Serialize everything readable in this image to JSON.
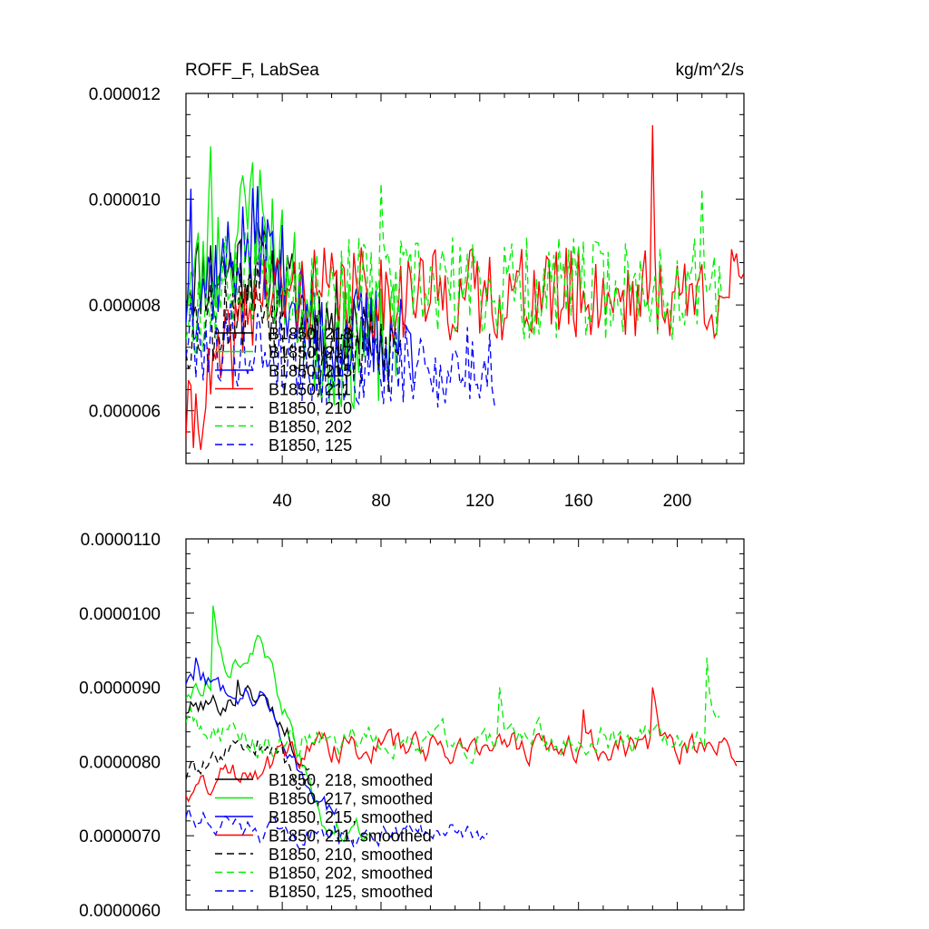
{
  "chart_data": [
    {
      "type": "line",
      "title_left": "ROFF_F, LabSea",
      "title_right": "kg/m^2/s",
      "xlabel": "",
      "ylabel": "",
      "xlim": [
        1,
        227
      ],
      "ylim": [
        5e-06,
        1.2e-05
      ],
      "x_ticks": [
        40,
        80,
        120,
        160,
        200
      ],
      "x_tick_labels": [
        "40",
        "80",
        "120",
        "160",
        "200"
      ],
      "y_ticks": [
        6e-06,
        8e-06,
        1e-05,
        1.2e-05
      ],
      "y_tick_labels": [
        "0.000006",
        "0.000008",
        "0.000010",
        "0.000012"
      ],
      "legend_position": "lower-left",
      "series": [
        {
          "name": "B1850, 218",
          "color": "#000000",
          "dash": "solid",
          "n": 76,
          "base": 7.7e-06,
          "start": 8.5e-06,
          "mid": 8.8e-06,
          "amp": 9e-07,
          "seed": 11,
          "spikes": []
        },
        {
          "name": "B1850, 217",
          "color": "#00ee00",
          "dash": "solid",
          "n": 87,
          "base": 7.2e-06,
          "start": 8.3e-06,
          "mid": 9.8e-06,
          "amp": 1.2e-06,
          "seed": 23,
          "spikes": [
            [
              11,
              1.1e-05
            ],
            [
              28,
              1.07e-05
            ]
          ]
        },
        {
          "name": "B1850, 215",
          "color": "#0000ff",
          "dash": "solid",
          "n": 94,
          "base": 7.4e-06,
          "start": 8.1e-06,
          "mid": 9.3e-06,
          "amp": 1e-06,
          "seed": 37,
          "spikes": [
            [
              3,
              1.02e-05
            ]
          ]
        },
        {
          "name": "B1850, 211",
          "color": "#ff0000",
          "dash": "solid",
          "n": 227,
          "base": 8.2e-06,
          "start": 5.5e-06,
          "mid": 8.2e-06,
          "amp": 9e-07,
          "seed": 41,
          "spikes": [
            [
              1,
              5.5e-06
            ],
            [
              190,
              1.14e-05
            ]
          ]
        },
        {
          "name": "B1850, 210",
          "color": "#000000",
          "dash": "8,5",
          "n": 88,
          "base": 7.1e-06,
          "start": 7.5e-06,
          "mid": 8.2e-06,
          "amp": 9e-07,
          "seed": 53,
          "spikes": []
        },
        {
          "name": "B1850, 202",
          "color": "#00ee00",
          "dash": "8,5",
          "n": 218,
          "base": 8.3e-06,
          "start": 7.8e-06,
          "mid": 8.8e-06,
          "amp": 1e-06,
          "seed": 67,
          "spikes": [
            [
              80,
              1.03e-05
            ],
            [
              210,
              1.02e-05
            ]
          ]
        },
        {
          "name": "B1850, 125",
          "color": "#0000ff",
          "dash": "8,5",
          "n": 126,
          "base": 6.8e-06,
          "start": 7.4e-06,
          "mid": 7.2e-06,
          "amp": 8e-07,
          "seed": 79,
          "spikes": []
        }
      ]
    },
    {
      "type": "line",
      "title_left": "",
      "title_right": "",
      "xlabel": "",
      "ylabel": "",
      "xlim": [
        1,
        227
      ],
      "ylim": [
        6e-06,
        1.1e-05
      ],
      "x_ticks": [
        40,
        80,
        120,
        160,
        200
      ],
      "x_tick_labels": [],
      "y_ticks": [
        6e-06,
        7e-06,
        8e-06,
        9e-06,
        1e-05,
        1.1e-05
      ],
      "y_tick_labels": [
        "0.0000060",
        "0.0000070",
        "0.0000080",
        "0.0000090",
        "0.0000100",
        "0.0000110"
      ],
      "legend_position": "lower-left",
      "series": [
        {
          "name": "B1850, 218, smoothed",
          "color": "#000000",
          "dash": "solid",
          "n": 51,
          "base": 7.7e-06,
          "start": 8.7e-06,
          "mid": 8.9e-06,
          "amp": 3e-07,
          "seed": 101,
          "spikes": [
            [
              22,
              9.1e-06
            ]
          ]
        },
        {
          "name": "B1850, 217, smoothed",
          "color": "#00ee00",
          "dash": "solid",
          "n": 75,
          "base": 7.1e-06,
          "start": 8.9e-06,
          "mid": 9.6e-06,
          "amp": 3e-07,
          "seed": 113,
          "spikes": [
            [
              12,
              1.01e-05
            ]
          ]
        },
        {
          "name": "B1850, 215, smoothed",
          "color": "#0000ff",
          "dash": "solid",
          "n": 62,
          "base": 7.3e-06,
          "start": 9.1e-06,
          "mid": 8.9e-06,
          "amp": 3e-07,
          "seed": 127,
          "spikes": [
            [
              5,
              9.4e-06
            ]
          ]
        },
        {
          "name": "B1850, 211, smoothed",
          "color": "#ff0000",
          "dash": "solid",
          "n": 224,
          "base": 8.2e-06,
          "start": 7.6e-06,
          "mid": 8e-06,
          "amp": 4e-07,
          "seed": 131,
          "spikes": [
            [
              190,
              9e-06
            ],
            [
              162,
              8.7e-06
            ]
          ]
        },
        {
          "name": "B1850, 210, smoothed",
          "color": "#000000",
          "dash": "8,5",
          "n": 52,
          "base": 7.5e-06,
          "start": 7.8e-06,
          "mid": 8.3e-06,
          "amp": 3e-07,
          "seed": 139,
          "spikes": []
        },
        {
          "name": "B1850, 202, smoothed",
          "color": "#00ee00",
          "dash": "8,5",
          "n": 217,
          "base": 8.3e-06,
          "start": 8.6e-06,
          "mid": 8.2e-06,
          "amp": 4e-07,
          "seed": 149,
          "spikes": [
            [
              128,
              9e-06
            ],
            [
              212,
              9.4e-06
            ]
          ]
        },
        {
          "name": "B1850, 125, smoothed",
          "color": "#0000ff",
          "dash": "8,5",
          "n": 123,
          "base": 7e-06,
          "start": 7.3e-06,
          "mid": 7e-06,
          "amp": 3e-07,
          "seed": 151,
          "spikes": []
        }
      ]
    }
  ]
}
